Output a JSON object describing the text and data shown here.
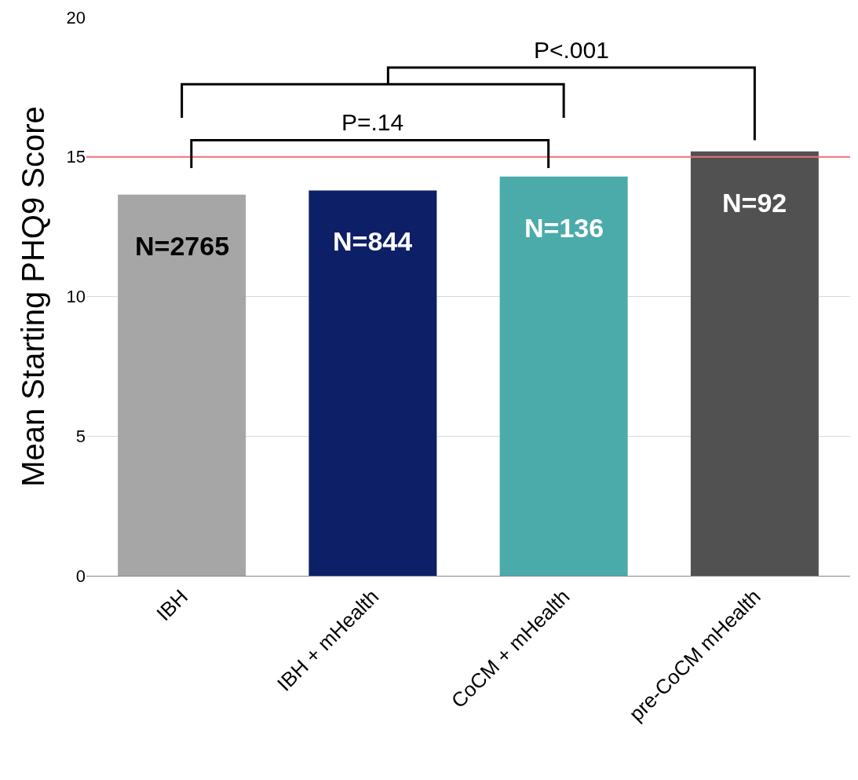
{
  "chart_data": {
    "type": "bar",
    "ylabel": "Mean Starting PHQ9 Score",
    "categories": [
      "IBH",
      "IBH + mHealth",
      "CoCM + mHealth",
      "pre-CoCM mHealth"
    ],
    "values": [
      13.65,
      13.8,
      14.3,
      15.2
    ],
    "colors": [
      "#a6a6a6",
      "#0d1f66",
      "#4aabaa",
      "#515151"
    ],
    "ylim": [
      0,
      20
    ],
    "yticks": [
      0,
      5,
      10,
      15,
      20
    ],
    "grid": "y",
    "ref_lines": [
      {
        "axis": "y",
        "value": 15,
        "color": "#f07070"
      }
    ],
    "annotations": [
      "N=2765",
      "N=844",
      "N=136",
      "N=92",
      "P=.14",
      "P<.001"
    ]
  }
}
